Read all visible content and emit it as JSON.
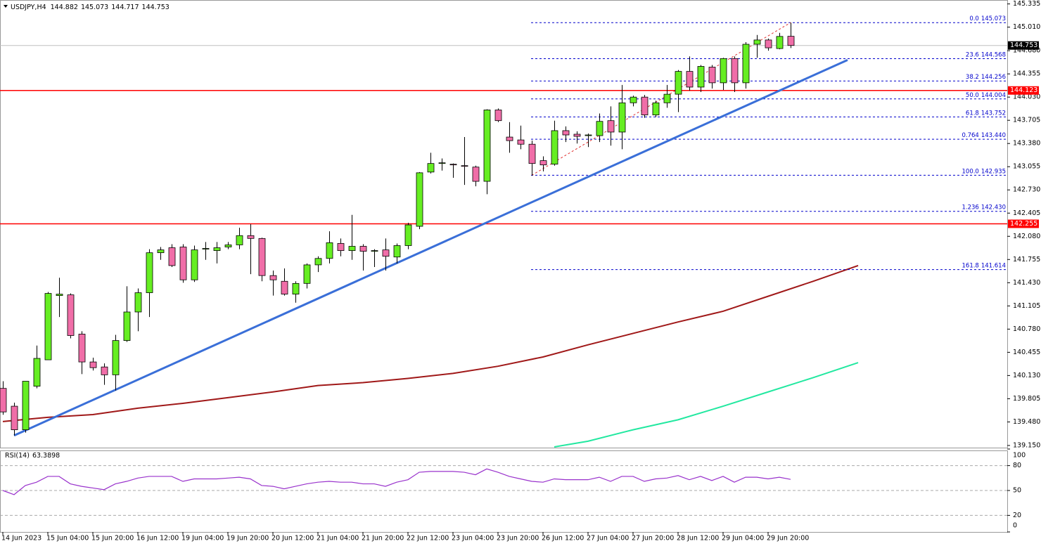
{
  "chart_data": [
    {
      "type": "candlestick",
      "symbol": "USDJPY,H4",
      "categories": [
        "14 Jun 2023",
        null,
        null,
        null,
        "15 Jun 04:00",
        null,
        null,
        null,
        "15 Jun 20:00",
        null,
        null,
        null,
        "16 Jun 12:00",
        null,
        null,
        null,
        "19 Jun 04:00",
        null,
        null,
        null,
        "19 Jun 20:00",
        null,
        null,
        null,
        "20 Jun 12:00",
        null,
        null,
        null,
        "21 Jun 04:00",
        null,
        null,
        null,
        "21 Jun 20:00",
        null,
        null,
        null,
        "22 Jun 12:00",
        null,
        null,
        null,
        "23 Jun 04:00",
        null,
        null,
        null,
        "23 Jun 20:00",
        null,
        null,
        null,
        "26 Jun 12:00",
        null,
        null,
        null,
        "27 Jun 04:00",
        null,
        null,
        null,
        "27 Jun 20:00",
        null,
        null,
        null,
        "28 Jun 12:00",
        null,
        null,
        null,
        "29 Jun 04:00",
        null,
        null,
        null,
        "29 Jun 20:00",
        null,
        null
      ],
      "open": [
        139.95,
        139.7,
        139.37,
        139.98,
        140.35,
        141.25,
        141.26,
        140.71,
        140.32,
        140.25,
        140.14,
        140.62,
        141.02,
        141.29,
        141.85,
        141.92,
        141.93,
        141.47,
        141.9,
        141.88,
        141.93,
        141.96,
        142.09,
        142.05,
        141.53,
        141.45,
        141.27,
        141.42,
        141.68,
        141.77,
        141.98,
        141.88,
        141.94,
        141.87,
        141.89,
        141.79,
        141.95,
        142.22,
        142.98,
        143.1,
        143.09,
        143.07,
        143.05,
        142.85,
        143.85,
        143.47,
        143.43,
        143.37,
        143.14,
        143.09,
        143.56,
        143.51,
        143.49,
        143.49,
        143.7,
        143.54,
        143.95,
        144.03,
        143.78,
        143.95,
        144.07,
        144.39,
        144.17,
        144.45,
        144.23,
        144.57,
        144.23,
        144.77,
        144.83,
        144.71,
        144.882
      ],
      "high": [
        140.05,
        139.75,
        140.05,
        140.55,
        141.3,
        141.5,
        141.28,
        140.75,
        140.38,
        140.3,
        140.7,
        141.38,
        141.35,
        141.9,
        141.93,
        141.97,
        141.97,
        141.95,
        142.0,
        142.0,
        142.0,
        142.2,
        142.25,
        142.06,
        141.6,
        141.63,
        141.45,
        141.7,
        141.8,
        142.15,
        142.05,
        142.38,
        141.97,
        141.9,
        142.05,
        141.98,
        142.27,
        142.98,
        143.25,
        143.17,
        143.1,
        143.47,
        143.07,
        143.86,
        143.87,
        143.68,
        143.63,
        143.42,
        143.2,
        143.7,
        143.62,
        143.55,
        143.52,
        143.8,
        143.9,
        144.2,
        144.05,
        144.06,
        143.98,
        144.2,
        144.41,
        144.6,
        144.48,
        144.48,
        144.58,
        144.6,
        144.8,
        144.9,
        144.85,
        144.93,
        145.073
      ],
      "low": [
        139.58,
        139.29,
        139.33,
        139.95,
        140.35,
        140.95,
        140.65,
        140.15,
        140.2,
        140.0,
        139.92,
        140.6,
        140.75,
        140.95,
        141.75,
        141.65,
        141.43,
        141.44,
        141.75,
        141.7,
        141.9,
        141.9,
        141.55,
        141.45,
        141.25,
        141.25,
        141.15,
        141.35,
        141.58,
        141.7,
        141.8,
        141.75,
        141.6,
        141.65,
        141.6,
        141.7,
        141.9,
        142.18,
        142.96,
        143.0,
        142.9,
        142.8,
        142.78,
        142.67,
        143.68,
        143.25,
        143.3,
        142.93,
        142.99,
        143.07,
        143.4,
        143.38,
        143.33,
        143.4,
        143.35,
        143.3,
        143.9,
        143.74,
        143.75,
        143.88,
        143.82,
        144.12,
        144.1,
        144.15,
        144.13,
        144.1,
        144.15,
        144.58,
        144.68,
        144.7,
        144.717
      ],
      "close": [
        139.62,
        139.37,
        140.05,
        140.37,
        141.28,
        141.27,
        140.69,
        140.32,
        140.24,
        140.14,
        140.62,
        141.02,
        141.29,
        141.85,
        141.89,
        141.67,
        141.47,
        141.89,
        141.91,
        141.92,
        141.96,
        142.09,
        142.05,
        141.53,
        141.47,
        141.27,
        141.42,
        141.68,
        141.77,
        141.99,
        141.88,
        141.94,
        141.87,
        141.88,
        141.8,
        141.95,
        142.24,
        142.97,
        143.1,
        143.11,
        143.08,
        143.06,
        142.85,
        143.85,
        143.7,
        143.42,
        143.37,
        143.1,
        143.08,
        143.56,
        143.5,
        143.48,
        143.5,
        143.69,
        143.54,
        143.95,
        144.03,
        143.78,
        143.95,
        144.07,
        144.39,
        144.17,
        144.46,
        144.23,
        144.57,
        144.23,
        144.77,
        144.83,
        144.72,
        144.88,
        144.753
      ],
      "up_color": "#66ee22",
      "down_color": "#f06ea8",
      "ylim": [
        139.12,
        145.39
      ],
      "yticks": [
        145.335,
        {
          "value": 145.01,
          "label": "145.010"
        },
        {
          "value": 144.68,
          "label": "144.680"
        },
        144.355,
        {
          "value": 144.03,
          "label": "144.030"
        },
        143.705,
        {
          "value": 143.38,
          "label": "143.380"
        },
        143.055,
        {
          "value": 142.73,
          "label": "142.730"
        },
        142.405,
        {
          "value": 142.08,
          "label": "142.080"
        },
        141.755,
        {
          "value": 141.43,
          "label": "141.430"
        },
        141.105,
        {
          "value": 140.78,
          "label": "140.780"
        },
        140.455,
        {
          "value": 140.13,
          "label": "140.130"
        },
        139.805,
        {
          "value": 139.48,
          "label": "139.480"
        },
        {
          "value": 139.15,
          "label": "139.150"
        }
      ],
      "levels": [
        144.123,
        142.255
      ],
      "level_color": "#ff0000",
      "fibonacci": [
        {
          "level": "0.0",
          "price": 145.073
        },
        {
          "level": "23.6",
          "price": 144.568
        },
        {
          "level": "38.2",
          "price": 144.256
        },
        {
          "level": "50.0",
          "price": {
            "value": 144.004,
            "label": "144.004"
          }
        },
        {
          "level": "61.8",
          "price": 143.752
        },
        {
          "level": "0.764",
          "price": {
            "value": 143.44,
            "label": "143.440"
          }
        },
        {
          "level": "100.0",
          "price": 142.935
        },
        {
          "level": "1.236",
          "price": {
            "value": 142.43,
            "label": "142.430"
          }
        },
        {
          "level": "161.8",
          "price": 141.614
        }
      ],
      "fib_color": "#0000cc",
      "lines": [
        {
          "color": "#a01818",
          "x": [
            0,
            4,
            8,
            12,
            16,
            20,
            24,
            28,
            32,
            36,
            40,
            44,
            48,
            52,
            56,
            60,
            64,
            68,
            72,
            76
          ],
          "values": [
            139.485,
            139.544,
            139.583,
            139.672,
            139.74,
            139.82,
            139.9,
            139.99,
            140.03,
            140.09,
            140.16,
            140.26,
            140.39,
            140.56,
            140.72,
            140.88,
            141.03,
            141.24,
            141.45,
            141.67
          ]
        },
        {
          "color": "#22e8a0",
          "x": [
            49,
            52,
            56,
            60,
            64,
            68,
            72,
            76
          ],
          "values": [
            139.13,
            139.21,
            139.37,
            139.51,
            139.7,
            139.9,
            140.1,
            140.31
          ]
        }
      ],
      "trendline": {
        "color": "#3a6fd8",
        "x": [
          1,
          75.06
        ],
        "values": [
          139.29,
          144.55
        ]
      }
    },
    {
      "type": "line",
      "title": "RSI(14)",
      "color": "#9932cc",
      "values": [
        50,
        45,
        56,
        60,
        67,
        67,
        58,
        55,
        53,
        51,
        58,
        61,
        65,
        67,
        67,
        67,
        61,
        64,
        64,
        64,
        65,
        66,
        64,
        56,
        55,
        52,
        55,
        58,
        60,
        61,
        60,
        60,
        58,
        58,
        55,
        60,
        63,
        72,
        73,
        73,
        73,
        72,
        69,
        76,
        72,
        67,
        64,
        61,
        60,
        64,
        63,
        63,
        63,
        66,
        61,
        67,
        67,
        61,
        64,
        65,
        68,
        63,
        67,
        62,
        67,
        60,
        66,
        66,
        64,
        66,
        63.3898
      ],
      "ylim": [
        0,
        100
      ],
      "yticks": [
        100,
        80,
        50,
        20,
        0
      ],
      "levels": [
        80,
        50,
        20
      ]
    }
  ]
}
